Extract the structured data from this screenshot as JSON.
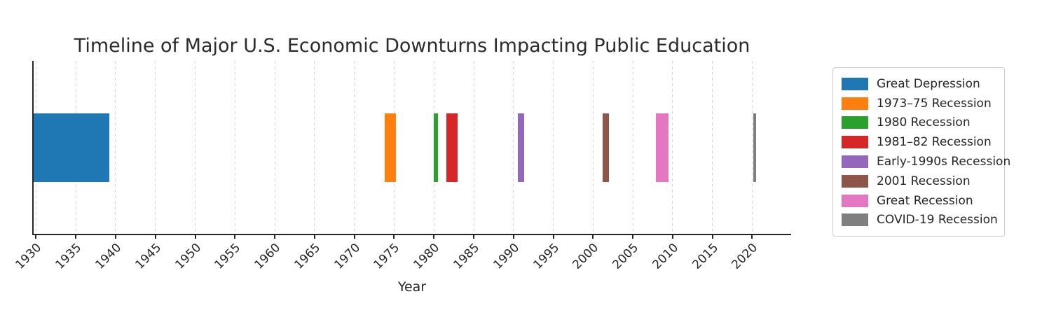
{
  "chart_data": {
    "type": "bar",
    "variant": "horizontal-timeline-spans",
    "title": "Timeline of Major U.S. Economic Downturns Impacting Public Education",
    "xlabel": "Year",
    "xlim": [
      1929.7,
      2024.8
    ],
    "x_ticks": [
      1930,
      1935,
      1940,
      1945,
      1950,
      1955,
      1960,
      1965,
      1970,
      1975,
      1980,
      1985,
      1990,
      1995,
      2000,
      2005,
      2010,
      2015,
      2020
    ],
    "tick_rotation_deg": 45,
    "grid": {
      "axis": "x",
      "style": "dashed",
      "color": "#d4d4d4"
    },
    "axis_color": "#262626",
    "text_color": "#262626",
    "legend_position": "outside-top-right",
    "events": [
      {
        "label": "Great Depression",
        "start": 1929.0,
        "end": 1939.2,
        "color": "#1f77b4"
      },
      {
        "label": "1973–75 Recession",
        "start": 1973.8,
        "end": 1975.25,
        "color": "#ff7f0e"
      },
      {
        "label": "1980 Recession",
        "start": 1980.0,
        "end": 1980.55,
        "color": "#2ca02c"
      },
      {
        "label": "1981–82 Recession",
        "start": 1981.55,
        "end": 1982.95,
        "color": "#d62728"
      },
      {
        "label": "Early-1990s Recession",
        "start": 1990.55,
        "end": 1991.3,
        "color": "#9467bd"
      },
      {
        "label": "2001 Recession",
        "start": 2001.2,
        "end": 2001.95,
        "color": "#8c564b"
      },
      {
        "label": "Great Recession",
        "start": 2007.9,
        "end": 2009.5,
        "color": "#e377c2"
      },
      {
        "label": "COVID-19 Recession",
        "start": 2020.1,
        "end": 2020.5,
        "color": "#7f7f7f"
      }
    ]
  }
}
